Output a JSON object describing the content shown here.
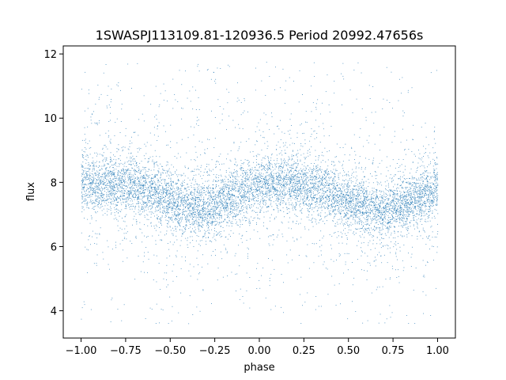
{
  "chart_data": {
    "type": "scatter",
    "title": "1SWASPJ113109.81-120936.5 Period 20992.47656s",
    "xlabel": "phase",
    "ylabel": "flux",
    "xlim": [
      -1.1,
      1.1
    ],
    "ylim": [
      3.15,
      12.25
    ],
    "xticks": [
      -1.0,
      -0.75,
      -0.5,
      -0.25,
      0.0,
      0.25,
      0.5,
      0.75,
      1.0
    ],
    "xtick_labels": [
      "−1.00",
      "−0.75",
      "−0.50",
      "−0.25",
      "0.00",
      "0.25",
      "0.50",
      "0.75",
      "1.00"
    ],
    "yticks": [
      4,
      6,
      8,
      10,
      12
    ],
    "ytick_labels": [
      "4",
      "6",
      "8",
      "10",
      "12"
    ],
    "grid": false,
    "marker_color": "#1f77b4",
    "light_curve": {
      "phase": [
        -1.0,
        -0.85,
        -0.65,
        -0.45,
        -0.3,
        -0.1,
        0.0,
        0.15,
        0.35,
        0.55,
        0.7,
        0.85,
        1.0
      ],
      "mean_flux": [
        8.0,
        7.95,
        7.85,
        7.3,
        7.15,
        7.7,
        7.95,
        8.0,
        7.8,
        7.3,
        7.1,
        7.4,
        7.9
      ]
    },
    "flux_range": [
      3.6,
      11.8
    ]
  }
}
